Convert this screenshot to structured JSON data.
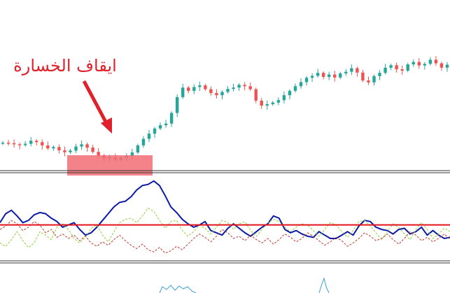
{
  "annotation": {
    "text": "ايقاف الخسارة"
  },
  "colors": {
    "up_candle": "#26a69a",
    "down_candle": "#ef5350",
    "stop_zone": "#f26d74",
    "arrow": "#e0202a",
    "main_line": "#0a1aa6",
    "zero_line": "#e3151b",
    "green_dashed": "#8fd13a",
    "red_dashed": "#c0392b",
    "histogram": "#3aa0d8",
    "separator": "#333333"
  },
  "chart_data": [
    {
      "type": "candlestick",
      "x": [
        1,
        2,
        3,
        4,
        5,
        6,
        7,
        8,
        9,
        10,
        11,
        12,
        13,
        14,
        15,
        16,
        17,
        18,
        19,
        20,
        21,
        22,
        23,
        24,
        25,
        26,
        27,
        28,
        29,
        30,
        31,
        32,
        33,
        34,
        35,
        36,
        37,
        38,
        39,
        40,
        41,
        42,
        43,
        44,
        45,
        46,
        47,
        48,
        49,
        50,
        51,
        52,
        53,
        54,
        55,
        56,
        57,
        58,
        59,
        60,
        61,
        62,
        63,
        64,
        65,
        66,
        67,
        68,
        69,
        70,
        71,
        72,
        73,
        74,
        75,
        76,
        77,
        78,
        79,
        80
      ],
      "close": [
        12.2,
        12.0,
        11.6,
        11.3,
        11.8,
        12.9,
        12.4,
        11.2,
        10.1,
        10.6,
        9.4,
        8.7,
        9.3,
        10.8,
        11.6,
        10.4,
        8.8,
        7.5,
        6.4,
        6.8,
        5.9,
        6.7,
        7.3,
        8.6,
        11.2,
        13.6,
        15.5,
        17.4,
        18.6,
        19.2,
        23.1,
        28.9,
        32.4,
        31.2,
        32.6,
        33.2,
        31.8,
        30.4,
        29.6,
        30.8,
        31.9,
        32.4,
        33.4,
        32.9,
        31.8,
        27.6,
        25.8,
        26.3,
        26.9,
        27.8,
        29.6,
        31.2,
        32.9,
        34.4,
        36.0,
        36.7,
        37.8,
        36.3,
        37.2,
        36.1,
        37.6,
        38.2,
        39.5,
        37.9,
        35.0,
        34.3,
        36.6,
        37.8,
        39.7,
        40.6,
        39.1,
        38.6,
        40.9,
        41.8,
        40.5,
        41.1,
        42.6,
        41.3,
        39.7,
        40.8
      ],
      "bar_close_points": "cut-shown"
    },
    {
      "type": "line",
      "series": [
        {
          "values": [
            0.2,
            1.0,
            1.3,
            0.8,
            0.2,
            0.4,
            0.9,
            1.1,
            1.0,
            0.6,
            0.3,
            -0.2,
            0.0,
            0.2,
            -0.4,
            -0.9,
            -0.7,
            -0.2,
            0.4,
            1.0,
            1.6,
            2.0,
            2.1,
            2.5,
            3.1,
            3.5,
            3.6,
            3.9,
            3.5,
            2.6,
            1.6,
            1.1,
            0.5,
            0.1,
            -0.2,
            0.0,
            0.3,
            -0.5,
            -0.7,
            -0.9,
            -0.3,
            0.1,
            -0.3,
            -0.7,
            -1.0,
            -0.6,
            -0.2,
            0.1,
            0.8,
            0.6,
            -0.4,
            -0.7,
            -0.5,
            -0.8,
            -1.0,
            -1.1,
            -0.6,
            -0.9,
            -1.2,
            -1.2,
            -0.9,
            -0.6,
            -0.9,
            -0.1,
            0.4,
            0.3,
            -0.2,
            -0.4,
            -0.5,
            -0.8,
            -0.4,
            -0.3,
            -0.8,
            -0.6,
            -0.2,
            -0.9,
            -0.5,
            -0.9,
            -1.2,
            -1.1
          ]
        },
        {
          "values": [
            -1.6,
            -1.9,
            -1.3,
            -0.6,
            -1.4,
            -2.0,
            -1.6,
            -0.6,
            -0.9,
            -1.3,
            -0.2,
            0.1,
            -0.4,
            -1.2,
            -1.6,
            -1.1,
            -0.3,
            0.0,
            -0.9,
            -1.5,
            -0.6,
            0.2,
            0.5,
            0.6,
            0.2,
            0.8,
            1.5,
            1.2,
            0.4,
            -0.3,
            0.3,
            0.4,
            -0.5,
            -1.0,
            -0.6,
            0.0,
            -0.3,
            -0.8,
            -0.2,
            0.4,
            0.2,
            -0.4,
            0.1,
            0.3,
            -0.5,
            -1.0,
            -0.4,
            0.2,
            0.5,
            0.3,
            -0.2,
            -0.6,
            -0.2,
            0.1,
            0.0,
            -0.5,
            -1.0,
            -0.4,
            0.2,
            0.0,
            -0.6,
            -1.1,
            -0.5,
            0.3,
            0.4,
            -0.1,
            -0.7,
            -1.3,
            -0.6,
            0.1,
            -0.2,
            -0.8,
            -1.3,
            -0.4,
            0.2,
            -0.4,
            -1.2,
            -0.8,
            -0.3,
            -0.6
          ]
        },
        {
          "values": [
            -0.4,
            -0.1,
            0.4,
            0.1,
            -0.5,
            -0.2,
            0.3,
            0.0,
            -0.7,
            -0.4,
            -1.1,
            -0.8,
            -1.2,
            -0.9,
            -1.4,
            -1.0,
            -1.6,
            -1.9,
            -1.5,
            -1.8,
            -1.3,
            -0.9,
            -1.4,
            -1.8,
            -2.1,
            -1.7,
            -2.2,
            -2.4,
            -2.0,
            -2.5,
            -2.3,
            -1.9,
            -2.2,
            -1.7,
            -1.2,
            -0.8,
            -1.1,
            -1.5,
            -1.0,
            -0.4,
            -0.7,
            -1.2,
            -1.0,
            -1.4,
            -0.9,
            -1.3,
            -1.6,
            -1.2,
            -1.7,
            -1.3,
            -0.8,
            -1.1,
            -1.5,
            -1.2,
            -0.7,
            -1.0,
            -1.4,
            -1.8,
            -1.5,
            -1.1,
            -1.4,
            -1.9,
            -1.6,
            -1.2,
            -0.7,
            -1.0,
            -1.4,
            -1.2,
            -0.8,
            -1.3,
            -1.7,
            -1.2,
            -0.6,
            -0.9,
            -1.4,
            -1.1,
            -1.5,
            -1.2,
            -0.8,
            -1.3
          ]
        }
      ],
      "zero_line": 0
    },
    {
      "type": "bar",
      "values": [
        0,
        0,
        0,
        0,
        0,
        0,
        0,
        0,
        0,
        0,
        0,
        0,
        0,
        0,
        0,
        0,
        0,
        0,
        0,
        0,
        0,
        0,
        0,
        0,
        0,
        0,
        0,
        0,
        0,
        0,
        0,
        0,
        0,
        0,
        0,
        0,
        0,
        0,
        0,
        0,
        0,
        0,
        0,
        0,
        0,
        0,
        0,
        0,
        0,
        0,
        0,
        0,
        0,
        0,
        0,
        0,
        0,
        0,
        0,
        0,
        0,
        0,
        0,
        0,
        0,
        0,
        0,
        0,
        0,
        0,
        0,
        0,
        0,
        0,
        0,
        0,
        0,
        0,
        0,
        0
      ]
    }
  ]
}
